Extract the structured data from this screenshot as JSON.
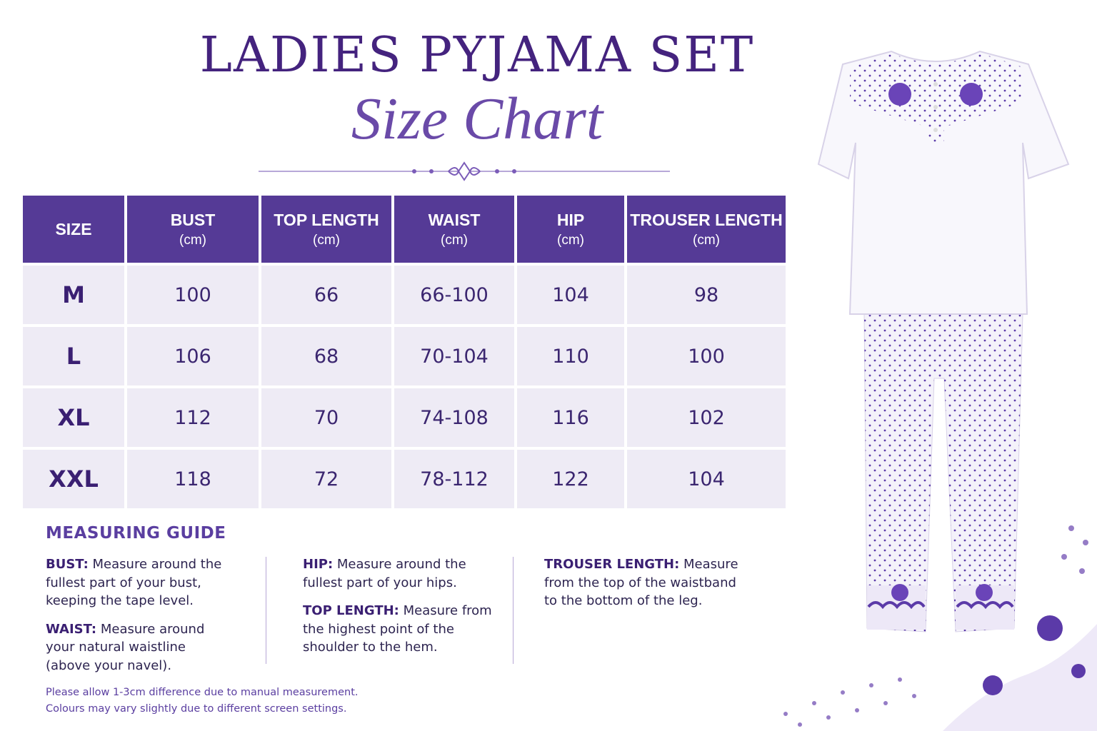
{
  "header": {
    "title": "LADIES PYJAMA SET",
    "subtitle": "Size Chart"
  },
  "table": {
    "columns": [
      {
        "name": "SIZE"
      },
      {
        "name": "BUST",
        "unit": "(cm)"
      },
      {
        "name": "TOP LENGTH",
        "unit": "(cm)"
      },
      {
        "name": "WAIST",
        "unit": "(cm)"
      },
      {
        "name": "HIP",
        "unit": "(cm)"
      },
      {
        "name": "TROUSER LENGTH",
        "unit": "(cm)"
      }
    ],
    "rows": [
      [
        "M",
        "100",
        "66",
        "66-100",
        "104",
        "98"
      ],
      [
        "L",
        "106",
        "68",
        "70-104",
        "110",
        "100"
      ],
      [
        "XL",
        "112",
        "70",
        "74-108",
        "116",
        "102"
      ],
      [
        "XXL",
        "118",
        "72",
        "78-112",
        "122",
        "104"
      ]
    ]
  },
  "guide": {
    "title": "MEASURING GUIDE",
    "columns": [
      [
        {
          "label": "BUST:",
          "text": "Measure around the fullest part of your bust, keeping the tape level."
        },
        {
          "label": "WAIST:",
          "text": "Measure around your natural waistline (above your navel)."
        }
      ],
      [
        {
          "label": "HIP:",
          "text": "Measure around the fullest part of your hips."
        },
        {
          "label": "TOP LENGTH:",
          "text": "Measure from the highest point of the shoulder to the hem."
        }
      ],
      [
        {
          "label": "TROUSER LENGTH:",
          "text": "Measure from the top of the waistband to the bottom of the leg."
        }
      ]
    ]
  },
  "notes": [
    "Please allow 1-3cm difference due to manual measurement.",
    "Colours may vary slightly due to different screen settings."
  ]
}
